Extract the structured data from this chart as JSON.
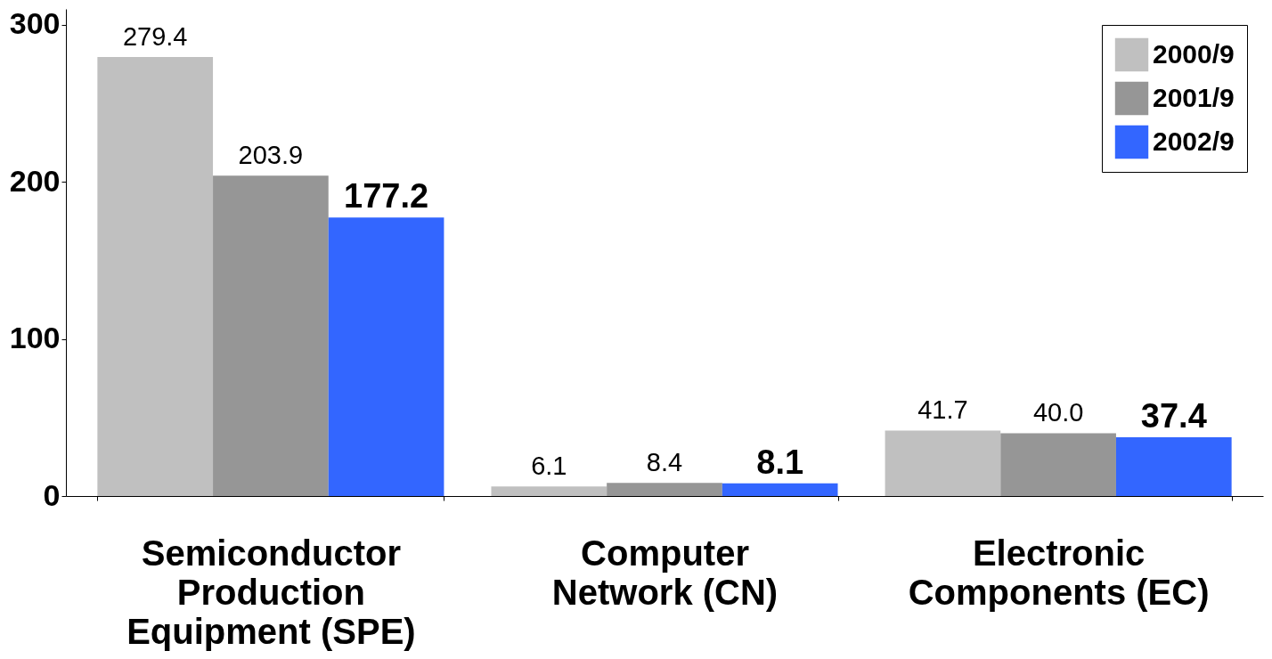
{
  "chart_data": {
    "type": "bar",
    "categories": [
      "Semiconductor Production Equipment (SPE)",
      "Computer Network (CN)",
      "Electronic Components (EC)"
    ],
    "series": [
      {
        "name": "2000/9",
        "color": "#c0c0c0",
        "values": [
          279.4,
          6.1,
          41.7
        ],
        "value_labels": [
          "279.4",
          "6.1",
          "41.7"
        ]
      },
      {
        "name": "2001/9",
        "color": "#969696",
        "values": [
          203.9,
          8.4,
          40.0
        ],
        "value_labels": [
          "203.9",
          "8.4",
          "40.0"
        ]
      },
      {
        "name": "2002/9",
        "color": "#3366ff",
        "values": [
          177.2,
          8.1,
          37.4
        ],
        "value_labels": [
          "177.2",
          "8.1",
          "37.4"
        ]
      }
    ],
    "ylim": [
      0,
      310
    ],
    "yticks": [
      0,
      100,
      200,
      300
    ],
    "grid": false,
    "legend": "top right"
  }
}
